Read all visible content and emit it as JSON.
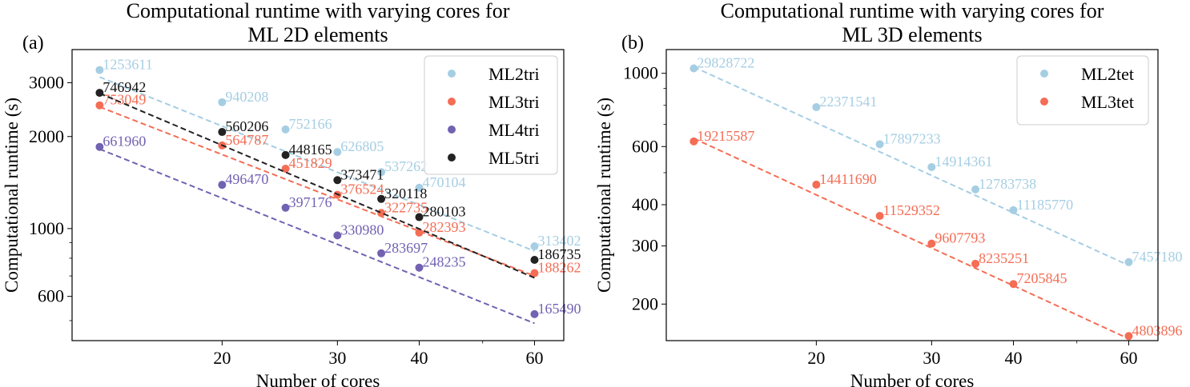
{
  "chart_data": [
    {
      "panel_label": "(a)",
      "type": "scatter",
      "title": [
        "Computational runtime with varying cores for",
        "ML 2D elements"
      ],
      "xlabel": "Number of cores",
      "ylabel": "Computational runtime (s)",
      "xscale": "log",
      "yscale": "log",
      "xlim": [
        11.8,
        66.5
      ],
      "ylim": [
        430,
        3850
      ],
      "xticks": [
        20,
        30,
        40,
        60
      ],
      "xtick_labels": [
        "20",
        "30",
        "40",
        "60"
      ],
      "yticks": [
        600,
        1000,
        2000,
        3000
      ],
      "ytick_labels": [
        "600",
        "1000",
        "2000",
        "3000"
      ],
      "legend_position": "upper right",
      "series": [
        {
          "name": "ML2tri",
          "color": "#a6cee3",
          "label_color": "#a6cee3",
          "x": [
            13,
            20,
            25,
            30,
            35,
            40,
            60
          ],
          "y": [
            3300,
            2590,
            2110,
            1780,
            1530,
            1360,
            875
          ],
          "labels": [
            "1253611",
            "940208",
            "752166",
            "626805",
            "537262",
            "470104",
            "313402"
          ],
          "fit": [
            3130,
            844
          ]
        },
        {
          "name": "ML3tri",
          "color": "#f46d55",
          "label_color": "#f46d55",
          "x": [
            13,
            20,
            25,
            30,
            35,
            40,
            60
          ],
          "y": [
            2530,
            1870,
            1570,
            1290,
            1125,
            970,
            715
          ],
          "labels": [
            "753049",
            "564787",
            "451829",
            "376524",
            "322735",
            "282393",
            "188262"
          ],
          "fit": [
            2500,
            700
          ]
        },
        {
          "name": "ML4tri",
          "color": "#7262b2",
          "label_color": "#7262b2",
          "x": [
            13,
            20,
            25,
            30,
            35,
            40,
            60
          ],
          "y": [
            1850,
            1390,
            1170,
            950,
            830,
            745,
            525
          ],
          "labels": [
            "661960",
            "496470",
            "397176",
            "330980",
            "283697",
            "248235",
            "165490"
          ],
          "fit": [
            1820,
            490
          ]
        },
        {
          "name": "ML5tri",
          "color": "#222222",
          "label_color": "#111111",
          "x": [
            13,
            20,
            25,
            30,
            35,
            40,
            60
          ],
          "y": [
            2780,
            2070,
            1740,
            1440,
            1250,
            1090,
            790
          ],
          "labels": [
            "746942",
            "560206",
            "448165",
            "373471",
            "320118",
            "280103",
            "186735"
          ],
          "fit": [
            2770,
            690
          ]
        }
      ]
    },
    {
      "panel_label": "(b)",
      "type": "scatter",
      "title": [
        "Computational runtime with varying cores for",
        "ML 3D elements"
      ],
      "xlabel": "Number of cores",
      "ylabel": "Computational runtime (s)",
      "xscale": "log",
      "yscale": "log",
      "xlim": [
        11.8,
        66.5
      ],
      "ylim": [
        155,
        1180
      ],
      "xticks": [
        20,
        30,
        40,
        60
      ],
      "xtick_labels": [
        "20",
        "30",
        "40",
        "60"
      ],
      "yticks": [
        200,
        300,
        400,
        600,
        1000
      ],
      "ytick_labels": [
        "200",
        "300",
        "400",
        "600",
        "1000"
      ],
      "legend_position": "upper right",
      "series": [
        {
          "name": "ML2tet",
          "color": "#a6cee3",
          "label_color": "#a6cee3",
          "x": [
            13,
            20,
            25,
            30,
            35,
            40,
            60
          ],
          "y": [
            1035,
            790,
            610,
            520,
            445,
            385,
            268
          ],
          "labels": [
            "29828722",
            "22371541",
            "17897233",
            "14914361",
            "12783738",
            "11185770",
            "7457180"
          ],
          "fit": [
            1045,
            262
          ]
        },
        {
          "name": "ML3tet",
          "color": "#f46d55",
          "label_color": "#f46d55",
          "x": [
            13,
            20,
            25,
            30,
            35,
            40,
            60
          ],
          "y": [
            622,
            460,
            370,
            305,
            265,
            230,
            160
          ],
          "labels": [
            "19215587",
            "14411690",
            "11529352",
            "9607793",
            "8235251",
            "7205845",
            "4803896"
          ],
          "fit": [
            635,
            157
          ]
        }
      ]
    }
  ]
}
